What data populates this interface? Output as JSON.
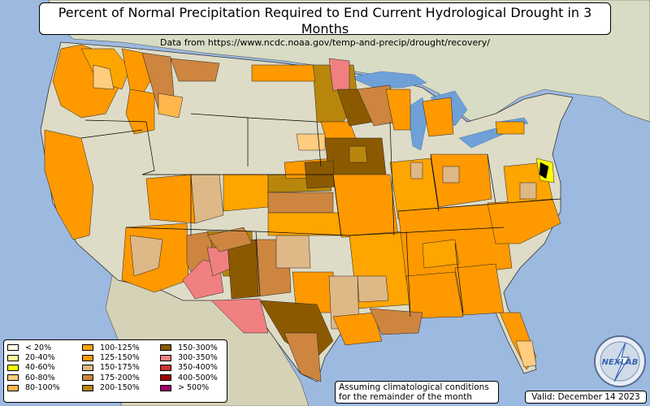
{
  "title": {
    "main": "Percent of Normal Precipitation Required to End Current Hydrological Drought in 3 Months",
    "sub": "Data from https://www.ncdc.noaa.gov/temp-and-precip/drought/recovery/"
  },
  "legend": {
    "col1": [
      {
        "label": "< 20%",
        "color": "#ffffe5"
      },
      {
        "label": "20-40%",
        "color": "#ffff99"
      },
      {
        "label": "40-60%",
        "color": "#ffff00"
      },
      {
        "label": "60-80%",
        "color": "#ffcc80"
      },
      {
        "label": "80-100%",
        "color": "#ffb74d"
      }
    ],
    "col2": [
      {
        "label": "100-125%",
        "color": "#ffa500"
      },
      {
        "label": "125-150%",
        "color": "#ff9900"
      },
      {
        "label": "150-175%",
        "color": "#deb887"
      },
      {
        "label": "175-200%",
        "color": "#cd853f"
      },
      {
        "label": "200-150%",
        "color": "#b8860b"
      }
    ],
    "col3": [
      {
        "label": "150-300%",
        "color": "#8b5a00"
      },
      {
        "label": "300-350%",
        "color": "#f08080"
      },
      {
        "label": "350-400%",
        "color": "#cd3333"
      },
      {
        "label": "400-500%",
        "color": "#a00000"
      },
      {
        "label": "> 500%",
        "color": "#a0006e"
      }
    ]
  },
  "note": {
    "line1": "Assuming climatological conditions",
    "line2": "for the remainder of the month"
  },
  "valid_text": "Valid: December 14 2023",
  "logo_text": "NEXLAB",
  "colors": {
    "ocean": "#9cb9e0",
    "land": "#dcdcc0",
    "lakes": "#6fa0d8"
  }
}
